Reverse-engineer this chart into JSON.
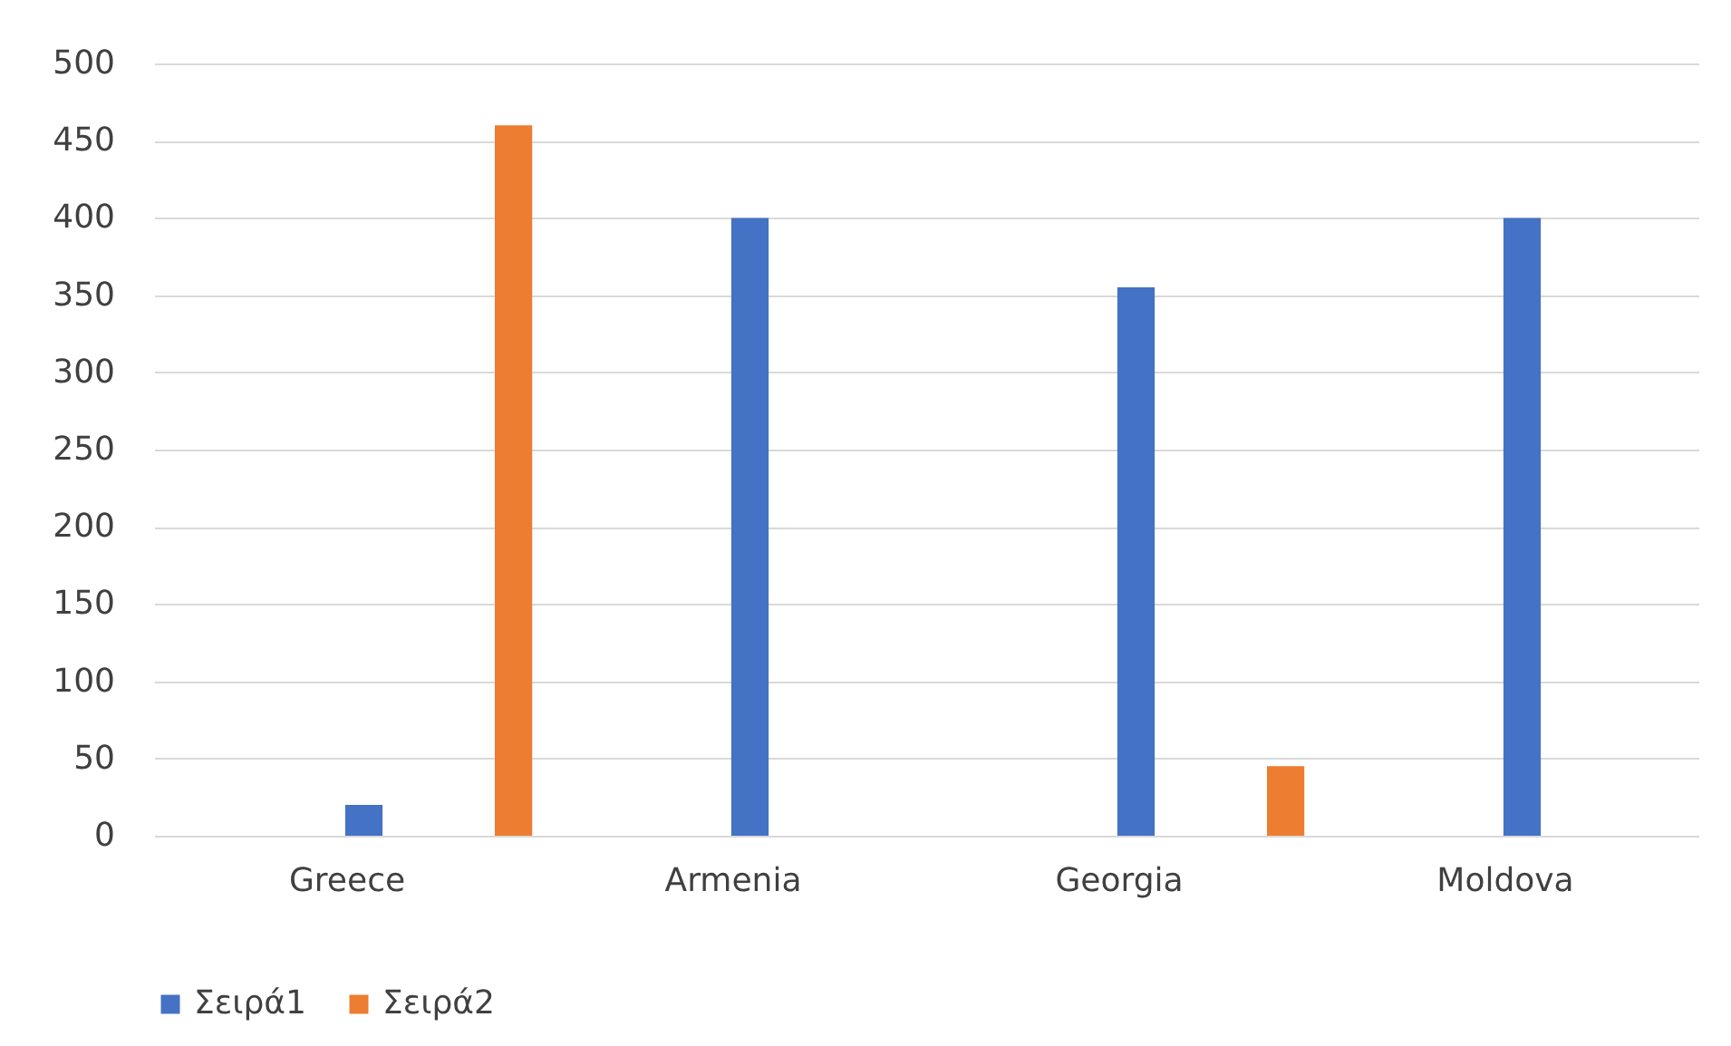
{
  "chart_data": {
    "type": "bar",
    "categories": [
      "Greece",
      "Armenia",
      "Georgia",
      "Moldova"
    ],
    "series": [
      {
        "name": "Σειρά1",
        "color": "#4472c4",
        "values": [
          20,
          400,
          355,
          400
        ]
      },
      {
        "name": "Σειρά2",
        "color": "#ed7d31",
        "values": [
          460,
          0,
          45,
          0
        ]
      }
    ],
    "ylim": [
      0,
      500
    ],
    "yticks": [
      0,
      50,
      100,
      150,
      200,
      250,
      300,
      350,
      400,
      450,
      500
    ],
    "grid": "y",
    "legend": "bottom"
  }
}
